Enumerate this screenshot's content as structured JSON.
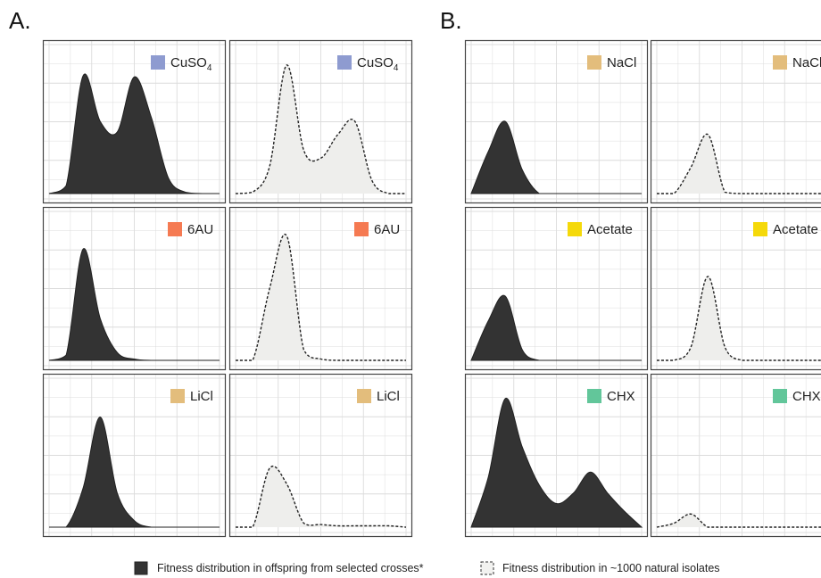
{
  "colors": {
    "offspring_fill": "#333333",
    "isolates_fill": "#eeeeec",
    "panel_border": "#444444",
    "grid": "#dcdcdc",
    "CuSO4": "#8e9bd0",
    "6AU": "#f57a52",
    "LiCl": "#e3bd7c",
    "NaCl": "#e3bd7c",
    "Acetate": "#f5d90a",
    "CHX": "#62c69a"
  },
  "legend": [
    {
      "key": "offspring",
      "label": "Fitness distribution in offspring from selected crosses*"
    },
    {
      "key": "isolates",
      "label": "Fitness distribution in ~1000 natural isolates"
    }
  ],
  "chart_data": [
    {
      "type": "area",
      "panel": "A.",
      "rows": [
        {
          "stress": "CuSO",
          "subscript": "4",
          "offspring": {
            "x": [
              0,
              0.1,
              0.2,
              0.3,
              0.4,
              0.5,
              0.6,
              0.7,
              0.8,
              0.9,
              1.0
            ],
            "y": [
              0.0,
              0.06,
              0.9,
              0.55,
              0.47,
              0.89,
              0.58,
              0.12,
              0.01,
              0.0,
              0.0
            ]
          },
          "isolates": {
            "x": [
              0,
              0.1,
              0.2,
              0.3,
              0.4,
              0.5,
              0.6,
              0.7,
              0.8,
              0.9,
              1.0
            ],
            "y": [
              0.0,
              0.01,
              0.21,
              0.98,
              0.33,
              0.27,
              0.45,
              0.55,
              0.1,
              0.0,
              0.0
            ]
          }
        },
        {
          "stress": "6AU",
          "offspring": {
            "x": [
              0,
              0.1,
              0.2,
              0.3,
              0.4,
              0.5,
              0.6,
              0.7,
              0.8,
              0.9,
              1.0
            ],
            "y": [
              0.0,
              0.04,
              0.85,
              0.32,
              0.06,
              0.01,
              0.0,
              0.0,
              0.0,
              0.0,
              0.0
            ]
          },
          "isolates": {
            "x": [
              0,
              0.1,
              0.2,
              0.3,
              0.4,
              0.5,
              0.6,
              0.7,
              0.8,
              0.9,
              1.0
            ],
            "y": [
              0.0,
              0.0,
              0.55,
              0.95,
              0.08,
              0.01,
              0.0,
              0.0,
              0.0,
              0.0,
              0.0
            ]
          }
        },
        {
          "stress": "LiCl",
          "offspring": {
            "x": [
              0,
              0.1,
              0.2,
              0.3,
              0.4,
              0.5,
              0.6,
              0.7,
              0.8,
              0.9,
              1.0
            ],
            "y": [
              0.0,
              0.0,
              0.3,
              0.84,
              0.26,
              0.05,
              0.0,
              0.0,
              0.0,
              0.0,
              0.0
            ]
          },
          "isolates": {
            "x": [
              0,
              0.1,
              0.2,
              0.3,
              0.4,
              0.5,
              0.6,
              0.7,
              0.8,
              0.9,
              1.0
            ],
            "y": [
              0.0,
              0.0,
              0.45,
              0.33,
              0.03,
              0.02,
              0.01,
              0.01,
              0.01,
              0.01,
              0.0
            ]
          }
        }
      ]
    },
    {
      "type": "area",
      "panel": "B.",
      "rows": [
        {
          "stress": "NaCl",
          "offspring": {
            "x": [
              0,
              0.1,
              0.2,
              0.3,
              0.4,
              0.5,
              0.6,
              0.7,
              0.8,
              0.9,
              1.0
            ],
            "y": [
              0.0,
              0.32,
              0.55,
              0.18,
              0.0,
              0.0,
              0.0,
              0.0,
              0.0,
              0.0,
              0.0
            ]
          },
          "isolates": {
            "x": [
              0,
              0.1,
              0.2,
              0.3,
              0.4,
              0.5,
              0.6,
              0.7,
              0.8,
              0.9,
              1.0
            ],
            "y": [
              0.0,
              0.0,
              0.2,
              0.45,
              0.01,
              0.0,
              0.0,
              0.0,
              0.0,
              0.0,
              0.0
            ]
          }
        },
        {
          "stress": "Acetate",
          "offspring": {
            "x": [
              0,
              0.1,
              0.2,
              0.3,
              0.4,
              0.5,
              0.6,
              0.7,
              0.8,
              0.9,
              1.0
            ],
            "y": [
              0.0,
              0.3,
              0.49,
              0.08,
              0.0,
              0.0,
              0.0,
              0.0,
              0.0,
              0.0,
              0.0
            ]
          },
          "isolates": {
            "x": [
              0,
              0.1,
              0.2,
              0.3,
              0.4,
              0.5,
              0.6,
              0.7,
              0.8,
              0.9,
              1.0
            ],
            "y": [
              0.0,
              0.0,
              0.1,
              0.64,
              0.1,
              0.0,
              0.0,
              0.0,
              0.0,
              0.0,
              0.0
            ]
          }
        },
        {
          "stress": "CHX",
          "offspring": {
            "x": [
              0,
              0.1,
              0.2,
              0.3,
              0.4,
              0.5,
              0.6,
              0.7,
              0.8,
              0.9,
              1.0
            ],
            "y": [
              0.0,
              0.38,
              0.98,
              0.61,
              0.32,
              0.18,
              0.26,
              0.42,
              0.26,
              0.12,
              0.0
            ]
          },
          "isolates": {
            "x": [
              0,
              0.1,
              0.2,
              0.3,
              0.4,
              0.5,
              0.6,
              0.7,
              0.8,
              0.9,
              1.0
            ],
            "y": [
              0.0,
              0.03,
              0.1,
              0.0,
              0.0,
              0.0,
              0.0,
              0.0,
              0.0,
              0.0,
              0.0
            ]
          }
        }
      ]
    }
  ]
}
